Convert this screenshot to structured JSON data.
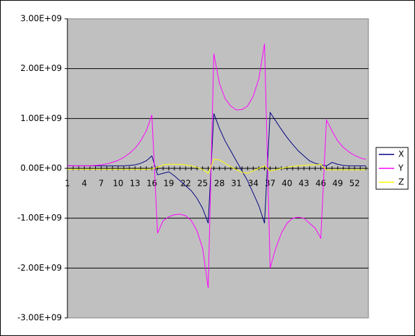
{
  "chart_data": {
    "type": "line",
    "categories": [
      1,
      null,
      null,
      4,
      null,
      null,
      7,
      null,
      null,
      10,
      null,
      null,
      13,
      null,
      null,
      16,
      null,
      null,
      19,
      null,
      null,
      22,
      null,
      null,
      25,
      null,
      null,
      28,
      null,
      null,
      31,
      null,
      null,
      34,
      null,
      null,
      37,
      null,
      null,
      40,
      null,
      null,
      43,
      null,
      null,
      46,
      null,
      null,
      49,
      null,
      null,
      52,
      null,
      null
    ],
    "series": [
      {
        "name": "X",
        "color": "#000080",
        "values": [
          50000000.0,
          50000000.0,
          50000000.0,
          50000000.0,
          50000000.0,
          50000000.0,
          50000000.0,
          50000000.0,
          50000000.0,
          50000000.0,
          50000000.0,
          60000000.0,
          70000000.0,
          100000000.0,
          150000000.0,
          250000000.0,
          -130000000.0,
          -100000000.0,
          -70000000.0,
          -150000000.0,
          -250000000.0,
          -350000000.0,
          -450000000.0,
          -600000000.0,
          -800000000.0,
          -1100000000.0,
          1100000000.0,
          800000000.0,
          550000000.0,
          350000000.0,
          150000000.0,
          -50000000.0,
          -250000000.0,
          -500000000.0,
          -750000000.0,
          -1100000000.0,
          1120000000.0,
          950000000.0,
          780000000.0,
          620000000.0,
          480000000.0,
          350000000.0,
          250000000.0,
          150000000.0,
          100000000.0,
          70000000.0,
          50000000.0,
          120000000.0,
          80000000.0,
          60000000.0,
          50000000.0,
          50000000.0,
          50000000.0,
          50000000.0
        ]
      },
      {
        "name": "Y",
        "color": "#ff00ff",
        "values": [
          50000000.0,
          50000000.0,
          50000000.0,
          50000000.0,
          50000000.0,
          60000000.0,
          70000000.0,
          90000000.0,
          120000000.0,
          160000000.0,
          220000000.0,
          300000000.0,
          400000000.0,
          550000000.0,
          750000000.0,
          1070000000.0,
          -1300000000.0,
          -1050000000.0,
          -970000000.0,
          -930000000.0,
          -920000000.0,
          -950000000.0,
          -1050000000.0,
          -1250000000.0,
          -1600000000.0,
          -2400000000.0,
          2300000000.0,
          1700000000.0,
          1400000000.0,
          1250000000.0,
          1170000000.0,
          1180000000.0,
          1250000000.0,
          1450000000.0,
          1800000000.0,
          2500000000.0,
          -2000000000.0,
          -1600000000.0,
          -1300000000.0,
          -1100000000.0,
          -1000000000.0,
          -980000000.0,
          -1000000000.0,
          -1100000000.0,
          -1200000000.0,
          -1400000000.0,
          970000000.0,
          750000000.0,
          550000000.0,
          420000000.0,
          330000000.0,
          260000000.0,
          210000000.0,
          180000000.0
        ]
      },
      {
        "name": "Z",
        "color": "#ffff00",
        "values": [
          -20000000.0,
          -20000000.0,
          -20000000.0,
          -20000000.0,
          -20000000.0,
          -20000000.0,
          -20000000.0,
          -20000000.0,
          -20000000.0,
          -20000000.0,
          -20000000.0,
          -20000000.0,
          -20000000.0,
          -20000000.0,
          -20000000.0,
          -10000000.0,
          20000000.0,
          70000000.0,
          80000000.0,
          80000000.0,
          80000000.0,
          70000000.0,
          50000000.0,
          20000000.0,
          -20000000.0,
          -100000000.0,
          180000000.0,
          170000000.0,
          100000000.0,
          30000000.0,
          -30000000.0,
          -80000000.0,
          -100000000.0,
          -50000000.0,
          0,
          50000000.0,
          -50000000.0,
          -30000000.0,
          0,
          20000000.0,
          40000000.0,
          50000000.0,
          60000000.0,
          70000000.0,
          70000000.0,
          80000000.0,
          -30000000.0,
          -30000000.0,
          -30000000.0,
          -30000000.0,
          -30000000.0,
          -30000000.0,
          -30000000.0,
          -30000000.0
        ]
      }
    ],
    "ylim": [
      -3000000000,
      3000000000
    ],
    "yticks": [
      {
        "value": -3000000000,
        "label": "-3.00E+09"
      },
      {
        "value": -2000000000,
        "label": "-2.00E+09"
      },
      {
        "value": -1000000000,
        "label": "-1.00E+09"
      },
      {
        "value": 0,
        "label": "0.00E+00"
      },
      {
        "value": 1000000000,
        "label": "1.00E+09"
      },
      {
        "value": 2000000000,
        "label": "2.00E+09"
      },
      {
        "value": 3000000000,
        "label": "3.00E+09"
      }
    ],
    "grid": true,
    "legend": "right"
  }
}
